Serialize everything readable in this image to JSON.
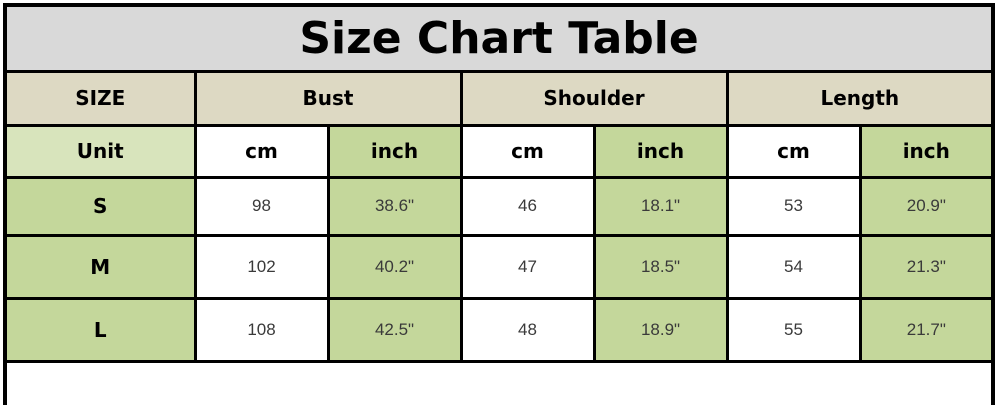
{
  "chart_data": {
    "type": "table",
    "title": "Size Chart Table",
    "header": {
      "size_label": "SIZE",
      "groups": [
        "Bust",
        "Shoulder",
        "Length"
      ]
    },
    "unit_row": {
      "label": "Unit",
      "units": [
        "cm",
        "inch",
        "cm",
        "inch",
        "cm",
        "inch"
      ]
    },
    "rows": [
      {
        "size": "S",
        "bust_cm": "98",
        "bust_inch": "38.6\"",
        "shoulder_cm": "46",
        "shoulder_inch": "18.1\"",
        "length_cm": "53",
        "length_inch": "20.9\""
      },
      {
        "size": "M",
        "bust_cm": "102",
        "bust_inch": "40.2\"",
        "shoulder_cm": "47",
        "shoulder_inch": "18.5\"",
        "length_cm": "54",
        "length_inch": "21.3\""
      },
      {
        "size": "L",
        "bust_cm": "108",
        "bust_inch": "42.5\"",
        "shoulder_cm": "48",
        "shoulder_inch": "18.9\"",
        "length_cm": "55",
        "length_inch": "21.7\""
      }
    ]
  },
  "colors": {
    "title_bg": "#d9d9d9",
    "header_bg": "#ddd9c3",
    "unit_label_bg": "#d8e4bc",
    "green_bg": "#c4d79b",
    "white_bg": "#ffffff",
    "border": "#000000",
    "text": "#000000",
    "data_text": "#3a3a3a"
  }
}
